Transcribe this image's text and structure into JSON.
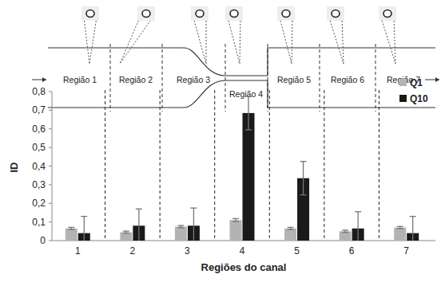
{
  "chart_data": {
    "type": "bar",
    "x_label": "Regiões do canal",
    "y_label": "ID",
    "annotations": [
      "Região 1",
      "Região 2",
      "Região 3",
      "Região 4",
      "Região 5",
      "Região 6",
      "Região 7"
    ],
    "categories": [
      "1",
      "2",
      "3",
      "4",
      "5",
      "6",
      "7"
    ],
    "series": [
      {
        "name": "Q1",
        "color": "#b3b3b3",
        "values": [
          0.065,
          0.045,
          0.075,
          0.11,
          0.065,
          0.05,
          0.07
        ],
        "errors": [
          0.006,
          0.006,
          0.006,
          0.008,
          0.006,
          0.006,
          0.006
        ]
      },
      {
        "name": "Q10",
        "color": "#1a1a1a",
        "values": [
          0.04,
          0.08,
          0.08,
          0.685,
          0.335,
          0.065,
          0.04
        ],
        "errors": [
          0.09,
          0.09,
          0.095,
          0.09,
          0.09,
          0.09,
          0.09
        ]
      }
    ],
    "ylim": [
      0,
      0.8
    ],
    "yticks": [
      0,
      {
        "value": 0.1,
        "label": "0,1"
      },
      {
        "value": 0.2,
        "label": "0,2"
      },
      {
        "value": 0.3,
        "label": "0,3"
      },
      {
        "value": 0.4,
        "label": "0,4"
      },
      {
        "value": 0.5,
        "label": "0,5"
      },
      {
        "value": 0.6,
        "label": "0,6"
      },
      {
        "value": 0.7,
        "label": "0,7"
      },
      {
        "value": 0.8,
        "label": "0,8"
      }
    ],
    "grid": false,
    "legend": "right"
  }
}
